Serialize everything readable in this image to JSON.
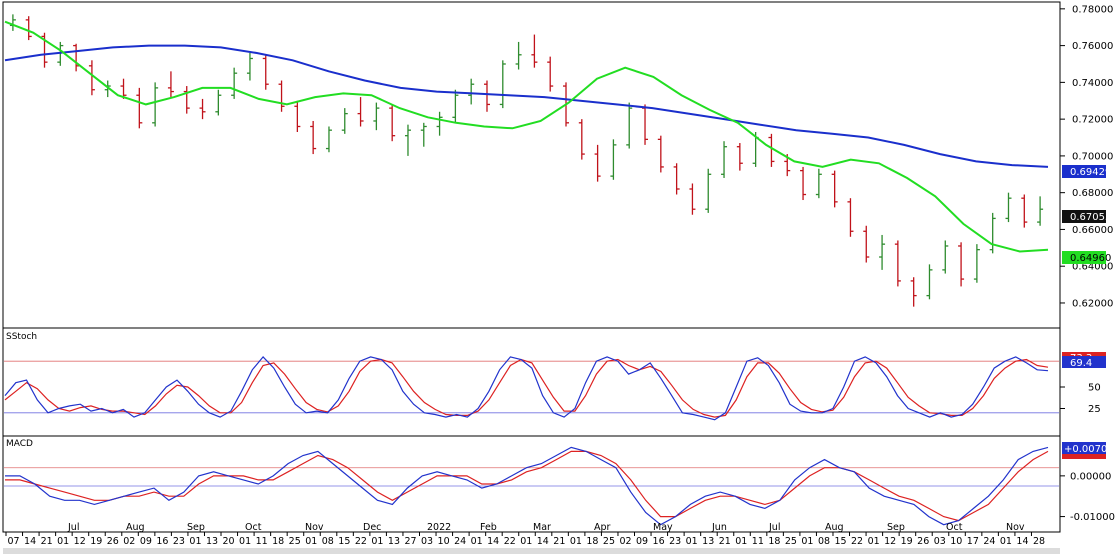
{
  "colors": {
    "candle_up": "#2e8b2e",
    "candle_down": "#c0121a",
    "ma_fast": "#22dd22",
    "ma_slow": "#1a2fcc",
    "stoch_k": "#2233cc",
    "stoch_d": "#dd2222",
    "macd_line": "#2233cc",
    "signal_line": "#dd2222",
    "ref_red": "#e07070",
    "ref_blue": "#7070e0",
    "frame": "#000000",
    "last_price_bg": "#111111"
  },
  "chart_data": [
    {
      "type": "line",
      "panel": "price",
      "y_ticks": [
        "0.78000",
        "0.76000",
        "0.74000",
        "0.72000",
        "0.70000",
        "0.68000",
        "0.66000",
        "0.64000",
        "0.62000"
      ],
      "ylim": [
        0.614,
        0.781
      ],
      "candles": [
        [
          0.771,
          0.777,
          0.768,
          0.774
        ],
        [
          0.774,
          0.776,
          0.763,
          0.765
        ],
        [
          0.765,
          0.767,
          0.748,
          0.751
        ],
        [
          0.751,
          0.762,
          0.749,
          0.76
        ],
        [
          0.76,
          0.761,
          0.746,
          0.749
        ],
        [
          0.749,
          0.752,
          0.733,
          0.736
        ],
        [
          0.736,
          0.741,
          0.732,
          0.738
        ],
        [
          0.738,
          0.742,
          0.731,
          0.733
        ],
        [
          0.733,
          0.737,
          0.715,
          0.718
        ],
        [
          0.718,
          0.74,
          0.716,
          0.737
        ],
        [
          0.737,
          0.746,
          0.732,
          0.735
        ],
        [
          0.735,
          0.738,
          0.723,
          0.726
        ],
        [
          0.726,
          0.731,
          0.72,
          0.724
        ],
        [
          0.724,
          0.736,
          0.722,
          0.733
        ],
        [
          0.733,
          0.748,
          0.731,
          0.745
        ],
        [
          0.745,
          0.756,
          0.741,
          0.753
        ],
        [
          0.753,
          0.755,
          0.736,
          0.739
        ],
        [
          0.739,
          0.741,
          0.724,
          0.727
        ],
        [
          0.727,
          0.73,
          0.713,
          0.716
        ],
        [
          0.716,
          0.719,
          0.701,
          0.704
        ],
        [
          0.704,
          0.716,
          0.702,
          0.714
        ],
        [
          0.714,
          0.726,
          0.712,
          0.723
        ],
        [
          0.723,
          0.732,
          0.716,
          0.719
        ],
        [
          0.719,
          0.729,
          0.714,
          0.726
        ],
        [
          0.726,
          0.728,
          0.708,
          0.711
        ],
        [
          0.711,
          0.717,
          0.7,
          0.714
        ],
        [
          0.714,
          0.718,
          0.705,
          0.716
        ],
        [
          0.716,
          0.724,
          0.711,
          0.721
        ],
        [
          0.721,
          0.736,
          0.718,
          0.733
        ],
        [
          0.733,
          0.742,
          0.728,
          0.739
        ],
        [
          0.739,
          0.741,
          0.724,
          0.728
        ],
        [
          0.728,
          0.752,
          0.726,
          0.75
        ],
        [
          0.75,
          0.762,
          0.747,
          0.755
        ],
        [
          0.755,
          0.766,
          0.748,
          0.751
        ],
        [
          0.751,
          0.754,
          0.735,
          0.738
        ],
        [
          0.738,
          0.74,
          0.716,
          0.718
        ],
        [
          0.718,
          0.72,
          0.698,
          0.701
        ],
        [
          0.701,
          0.706,
          0.686,
          0.689
        ],
        [
          0.689,
          0.709,
          0.687,
          0.706
        ],
        [
          0.706,
          0.729,
          0.704,
          0.726
        ],
        [
          0.726,
          0.728,
          0.706,
          0.709
        ],
        [
          0.709,
          0.711,
          0.691,
          0.694
        ],
        [
          0.694,
          0.696,
          0.679,
          0.682
        ],
        [
          0.682,
          0.685,
          0.668,
          0.671
        ],
        [
          0.671,
          0.693,
          0.669,
          0.69
        ],
        [
          0.69,
          0.708,
          0.688,
          0.705
        ],
        [
          0.705,
          0.707,
          0.692,
          0.696
        ],
        [
          0.696,
          0.713,
          0.694,
          0.71
        ],
        [
          0.71,
          0.712,
          0.694,
          0.697
        ],
        [
          0.697,
          0.701,
          0.689,
          0.692
        ],
        [
          0.692,
          0.694,
          0.676,
          0.679
        ],
        [
          0.679,
          0.693,
          0.677,
          0.69
        ],
        [
          0.69,
          0.692,
          0.672,
          0.675
        ],
        [
          0.675,
          0.677,
          0.656,
          0.659
        ],
        [
          0.659,
          0.662,
          0.642,
          0.645
        ],
        [
          0.645,
          0.657,
          0.638,
          0.652
        ],
        [
          0.652,
          0.654,
          0.629,
          0.632
        ],
        [
          0.632,
          0.634,
          0.618,
          0.624
        ],
        [
          0.624,
          0.641,
          0.622,
          0.638
        ],
        [
          0.638,
          0.654,
          0.636,
          0.651
        ],
        [
          0.651,
          0.653,
          0.629,
          0.633
        ],
        [
          0.633,
          0.652,
          0.631,
          0.649
        ],
        [
          0.649,
          0.669,
          0.647,
          0.666
        ],
        [
          0.666,
          0.68,
          0.664,
          0.677
        ],
        [
          0.677,
          0.679,
          0.661,
          0.664
        ],
        [
          0.664,
          0.678,
          0.662,
          0.671
        ]
      ],
      "ma_fast": [
        0.773,
        0.767,
        0.757,
        0.745,
        0.733,
        0.728,
        0.732,
        0.737,
        0.737,
        0.731,
        0.728,
        0.732,
        0.734,
        0.733,
        0.726,
        0.721,
        0.718,
        0.716,
        0.715,
        0.719,
        0.729,
        0.742,
        0.748,
        0.743,
        0.733,
        0.725,
        0.718,
        0.706,
        0.697,
        0.694,
        0.698,
        0.696,
        0.688,
        0.678,
        0.663,
        0.652,
        0.648,
        0.649
      ],
      "ma_slow": [
        0.752,
        0.755,
        0.757,
        0.759,
        0.76,
        0.76,
        0.759,
        0.756,
        0.752,
        0.746,
        0.741,
        0.737,
        0.735,
        0.734,
        0.733,
        0.732,
        0.73,
        0.728,
        0.726,
        0.723,
        0.72,
        0.717,
        0.714,
        0.712,
        0.71,
        0.706,
        0.701,
        0.697,
        0.695,
        0.694
      ],
      "series": [
        {
          "name": "",
          "last_value": "0.67055"
        },
        {
          "name": "",
          "last_value": "0.69429"
        },
        {
          "name": "",
          "last_value": "0.64960"
        }
      ]
    },
    {
      "type": "line",
      "panel": "stochastic",
      "title": "SStoch",
      "ylim": [
        0,
        100
      ],
      "y_ticks": [
        "25",
        "50"
      ],
      "ref_levels": [
        80,
        20
      ],
      "last_values": [
        "73.3",
        "69.4"
      ],
      "series": [
        {
          "name": "",
          "values": [
            40,
            55,
            58,
            35,
            20,
            25,
            28,
            30,
            22,
            25,
            20,
            24,
            15,
            20,
            35,
            50,
            58,
            45,
            30,
            20,
            15,
            22,
            45,
            70,
            85,
            72,
            50,
            30,
            20,
            22,
            20,
            35,
            60,
            80,
            85,
            82,
            70,
            45,
            30,
            20,
            18,
            15,
            18,
            15,
            25,
            45,
            70,
            85,
            82,
            72,
            40,
            20,
            15,
            25,
            55,
            80,
            85,
            80,
            65,
            70,
            78,
            60,
            40,
            20,
            18,
            15,
            12,
            20,
            50,
            80,
            84,
            75,
            55,
            30,
            22,
            20,
            20,
            25,
            50,
            80,
            85,
            78,
            62,
            40,
            25,
            20,
            15,
            20,
            15,
            18,
            30,
            50,
            72,
            80,
            85,
            78,
            70,
            69
          ]
        },
        {
          "name": "",
          "values": [
            35,
            45,
            55,
            48,
            35,
            25,
            22,
            26,
            28,
            24,
            22,
            22,
            20,
            18,
            28,
            42,
            52,
            50,
            40,
            28,
            20,
            20,
            32,
            55,
            75,
            78,
            65,
            48,
            32,
            24,
            21,
            28,
            45,
            68,
            80,
            82,
            78,
            62,
            45,
            32,
            24,
            18,
            17,
            17,
            22,
            35,
            55,
            75,
            82,
            78,
            58,
            38,
            22,
            22,
            40,
            65,
            80,
            82,
            75,
            70,
            74,
            68,
            52,
            35,
            24,
            18,
            15,
            17,
            35,
            62,
            78,
            78,
            66,
            48,
            32,
            24,
            21,
            23,
            38,
            62,
            78,
            80,
            72,
            55,
            38,
            28,
            20,
            19,
            17,
            17,
            25,
            40,
            60,
            72,
            80,
            82,
            75,
            73
          ]
        }
      ]
    },
    {
      "type": "line",
      "panel": "macd",
      "title": "MACD",
      "y_ticks": [
        "0.00000",
        "-0.01000"
      ],
      "ylim": [
        -0.0133,
        0.0093
      ],
      "ref_levels": [
        0.002,
        -0.0025
      ],
      "last_values": [
        "+0.00701",
        "+0.00598"
      ],
      "series": [
        {
          "name": "",
          "values": [
            0.0,
            0.0,
            -0.002,
            -0.005,
            -0.006,
            -0.006,
            -0.007,
            -0.006,
            -0.005,
            -0.004,
            -0.003,
            -0.006,
            -0.004,
            0.0,
            0.001,
            0.0,
            -0.001,
            -0.002,
            0.0,
            0.003,
            0.005,
            0.006,
            0.003,
            0.0,
            -0.003,
            -0.006,
            -0.007,
            -0.003,
            0.0,
            0.001,
            0.0,
            -0.001,
            -0.003,
            -0.002,
            0.0,
            0.002,
            0.003,
            0.005,
            0.007,
            0.006,
            0.004,
            0.002,
            -0.004,
            -0.009,
            -0.012,
            -0.01,
            -0.007,
            -0.005,
            -0.004,
            -0.005,
            -0.007,
            -0.008,
            -0.006,
            -0.001,
            0.002,
            0.004,
            0.002,
            0.001,
            -0.003,
            -0.005,
            -0.006,
            -0.007,
            -0.01,
            -0.012,
            -0.011,
            -0.008,
            -0.005,
            -0.001,
            0.004,
            0.006,
            0.007
          ]
        },
        {
          "name": "",
          "values": [
            -0.001,
            -0.001,
            -0.002,
            -0.003,
            -0.004,
            -0.005,
            -0.006,
            -0.006,
            -0.005,
            -0.005,
            -0.004,
            -0.005,
            -0.005,
            -0.002,
            0.0,
            0.0,
            0.0,
            -0.001,
            -0.001,
            0.001,
            0.003,
            0.005,
            0.004,
            0.002,
            -0.001,
            -0.004,
            -0.006,
            -0.004,
            -0.002,
            0.0,
            0.0,
            0.0,
            -0.002,
            -0.002,
            -0.001,
            0.001,
            0.002,
            0.004,
            0.006,
            0.006,
            0.005,
            0.003,
            -0.001,
            -0.006,
            -0.01,
            -0.01,
            -0.008,
            -0.006,
            -0.005,
            -0.005,
            -0.006,
            -0.007,
            -0.006,
            -0.003,
            0.0,
            0.002,
            0.002,
            0.001,
            -0.001,
            -0.003,
            -0.005,
            -0.006,
            -0.008,
            -0.01,
            -0.011,
            -0.009,
            -0.007,
            -0.003,
            0.001,
            0.004,
            0.006
          ]
        }
      ]
    }
  ],
  "x_axis": {
    "months": [
      "Jul",
      "Aug",
      "Sep",
      "Oct",
      "Nov",
      "Dec",
      "2022",
      "Feb",
      "Mar",
      "Apr",
      "May",
      "Jun",
      "Jul",
      "Aug",
      "Sep",
      "Oct",
      "Nov"
    ],
    "days": [
      "07",
      "14",
      "21",
      "01",
      "12",
      "19",
      "26",
      "02",
      "09",
      "16",
      "23",
      "01",
      "13",
      "20",
      "01",
      "11",
      "18",
      "25",
      "01",
      "08",
      "15",
      "22",
      "01",
      "13",
      "27",
      "03",
      "10",
      "24",
      "01",
      "14",
      "22",
      "01",
      "14",
      "21",
      "01",
      "18",
      "25",
      "02",
      "09",
      "16",
      "23",
      "01",
      "13",
      "21",
      "01",
      "11",
      "18",
      "25",
      "01",
      "08",
      "15",
      "22",
      "01",
      "12",
      "19",
      "26",
      "03",
      "10",
      "17",
      "24",
      "01",
      "14",
      "28"
    ]
  }
}
